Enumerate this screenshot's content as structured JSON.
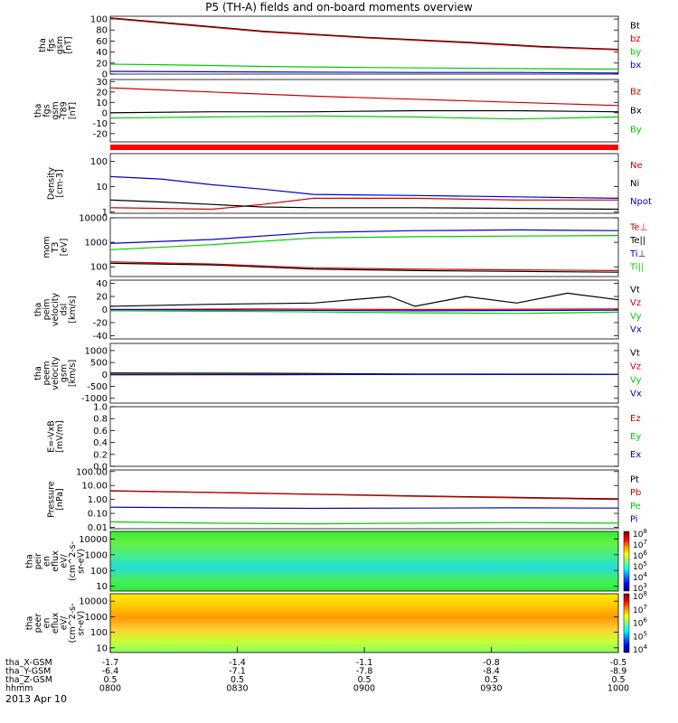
{
  "title": "P5 (TH-A) fields and on-board moments overview",
  "date_label": "2013 Apr 10",
  "chart_data": [
    {
      "type": "line",
      "id": "fgs-gsm",
      "ylabel": [
        "tha",
        "fgs",
        "gsm",
        "[nT]"
      ],
      "ylim": [
        0,
        105
      ],
      "yscale": "linear",
      "yticks": [
        0,
        20,
        40,
        60,
        80,
        100
      ],
      "yticklabels": [
        "0",
        "20",
        "40",
        "60",
        "80",
        "100"
      ],
      "legend": [
        "Bt",
        "bz",
        "by",
        "bx"
      ],
      "series": [
        {
          "name": "Bt",
          "color": "#000000",
          "x": [
            0,
            0.15,
            0.3,
            0.5,
            0.7,
            0.85,
            1.0
          ],
          "y": [
            102,
            90,
            78,
            67,
            58,
            50,
            45
          ]
        },
        {
          "name": "bz",
          "color": "#cc0000",
          "x": [
            0,
            0.15,
            0.3,
            0.5,
            0.7,
            0.85,
            1.0
          ],
          "y": [
            101,
            89,
            77,
            66,
            57,
            49,
            44
          ]
        },
        {
          "name": "by",
          "color": "#00cc00",
          "x": [
            0,
            0.1,
            0.3,
            0.5,
            0.8,
            1.0
          ],
          "y": [
            18,
            17,
            14,
            12,
            10,
            9
          ]
        },
        {
          "name": "bx",
          "color": "#0000cc",
          "x": [
            0,
            0.3,
            0.6,
            0.8,
            1.0
          ],
          "y": [
            5,
            4,
            3,
            3,
            2
          ]
        }
      ]
    },
    {
      "type": "line",
      "id": "fgs-gsm-t89",
      "ylabel": [
        "tha",
        "fgs",
        "gsm",
        "-T89",
        "[nT]"
      ],
      "ylim": [
        -28,
        32
      ],
      "yscale": "linear",
      "yticks": [
        -20,
        -10,
        0,
        10,
        20,
        30
      ],
      "yticklabels": [
        "-20",
        "-10",
        "0",
        "10",
        "20",
        "30"
      ],
      "legend": [
        "Bz",
        "Bx",
        "By"
      ],
      "series": [
        {
          "name": "Bz",
          "color": "#cc0000",
          "x": [
            0,
            0.1,
            0.25,
            0.4,
            0.6,
            0.8,
            1.0
          ],
          "y": [
            24,
            22,
            19,
            16,
            13,
            10,
            7
          ]
        },
        {
          "name": "Bx",
          "color": "#000000",
          "x": [
            0,
            0.2,
            0.4,
            0.6,
            0.8,
            1.0
          ],
          "y": [
            0,
            1,
            1,
            2,
            2,
            1
          ]
        },
        {
          "name": "By",
          "color": "#00cc00",
          "x": [
            0,
            0.2,
            0.4,
            0.6,
            0.8,
            1.0
          ],
          "y": [
            -5,
            -4,
            -3,
            -4,
            -6,
            -4
          ]
        }
      ]
    },
    {
      "type": "line",
      "id": "density",
      "ylabel": [
        "Density",
        "[cm-3]"
      ],
      "ylim": [
        0.9,
        200
      ],
      "yscale": "log",
      "yticks": [
        1,
        10,
        100
      ],
      "yticklabels": [
        "1",
        "10",
        "100"
      ],
      "legend": [
        "Ne",
        "Ni",
        "Npot"
      ],
      "series": [
        {
          "name": "Npot",
          "color": "#0000cc",
          "x": [
            0,
            0.1,
            0.2,
            0.3,
            0.4,
            0.6,
            0.8,
            1.0
          ],
          "y": [
            25,
            20,
            12,
            8,
            5,
            4.5,
            4,
            3.5
          ]
        },
        {
          "name": "Ne",
          "color": "#cc0000",
          "x": [
            0,
            0.1,
            0.2,
            0.3,
            0.4,
            0.6,
            0.8,
            1.0
          ],
          "y": [
            1.5,
            1.4,
            1.3,
            2,
            3.5,
            3.5,
            3,
            3
          ]
        },
        {
          "name": "Ni",
          "color": "#000000",
          "x": [
            0,
            0.1,
            0.2,
            0.3,
            0.4,
            0.6,
            0.8,
            1.0
          ],
          "y": [
            3,
            2.5,
            2,
            1.6,
            1.5,
            1.5,
            1.4,
            1.3
          ]
        }
      ]
    },
    {
      "type": "line",
      "id": "temperature",
      "ylabel": [
        "mom",
        "T3",
        "[eV]"
      ],
      "ylim": [
        40,
        10000
      ],
      "yscale": "log",
      "yticks": [
        100,
        1000,
        10000
      ],
      "yticklabels": [
        "100",
        "1000",
        "10000"
      ],
      "legend": [
        "Te⊥",
        "Te||",
        "Ti⊥",
        "Ti||"
      ],
      "series": [
        {
          "name": "Ti⊥",
          "color": "#0000cc",
          "x": [
            0,
            0.2,
            0.4,
            0.6,
            0.8,
            1.0
          ],
          "y": [
            900,
            1300,
            2500,
            3000,
            3200,
            3000
          ]
        },
        {
          "name": "Ti||",
          "color": "#00cc00",
          "x": [
            0,
            0.2,
            0.4,
            0.6,
            0.8,
            1.0
          ],
          "y": [
            500,
            800,
            1500,
            1700,
            1800,
            1900
          ]
        },
        {
          "name": "Te||",
          "color": "#000000",
          "x": [
            0,
            0.2,
            0.4,
            0.6,
            0.8,
            1.0
          ],
          "y": [
            140,
            120,
            80,
            70,
            65,
            60
          ]
        },
        {
          "name": "Te⊥",
          "color": "#cc0000",
          "x": [
            0,
            0.2,
            0.4,
            0.6,
            0.8,
            1.0
          ],
          "y": [
            160,
            130,
            90,
            80,
            75,
            70
          ]
        }
      ]
    },
    {
      "type": "line",
      "id": "peim-velocity",
      "ylabel": [
        "tha",
        "peim",
        "velocity",
        "dsl",
        "[km/s]"
      ],
      "ylim": [
        -45,
        45
      ],
      "yscale": "linear",
      "yticks": [
        -40,
        -20,
        0,
        20,
        40
      ],
      "yticklabels": [
        "-40",
        "-20",
        "0",
        "20",
        "40"
      ],
      "legend": [
        "Vt",
        "Vz",
        "Vy",
        "Vx"
      ],
      "series": [
        {
          "name": "Vt",
          "color": "#000000",
          "x": [
            0,
            0.2,
            0.4,
            0.55,
            0.6,
            0.7,
            0.8,
            0.9,
            1.0
          ],
          "y": [
            5,
            8,
            10,
            20,
            5,
            20,
            10,
            25,
            15
          ]
        },
        {
          "name": "Vz",
          "color": "#cc0000",
          "x": [
            0,
            0.3,
            0.6,
            1.0
          ],
          "y": [
            0,
            1,
            0,
            1
          ]
        },
        {
          "name": "Vy",
          "color": "#00cc00",
          "x": [
            0,
            0.3,
            0.6,
            0.8,
            1.0
          ],
          "y": [
            -2,
            -3,
            -5,
            -6,
            -4
          ]
        },
        {
          "name": "Vx",
          "color": "#0000cc",
          "x": [
            0,
            0.3,
            0.6,
            1.0
          ],
          "y": [
            0,
            -1,
            -2,
            -1
          ]
        }
      ]
    },
    {
      "type": "line",
      "id": "peem-velocity",
      "ylabel": [
        "tha",
        "peem",
        "velocity",
        "gsm",
        "[km/s]"
      ],
      "ylim": [
        -1200,
        1300
      ],
      "yscale": "linear",
      "yticks": [
        -1000,
        -500,
        0,
        500,
        1000
      ],
      "yticklabels": [
        "-1000",
        "-500",
        "0",
        "500",
        "1000"
      ],
      "legend": [
        "Vt",
        "Vz",
        "Vy",
        "Vx"
      ],
      "series": [
        {
          "name": "Vt",
          "color": "#000000",
          "x": [
            0,
            0.3,
            0.6,
            1.0
          ],
          "y": [
            60,
            50,
            20,
            10
          ]
        },
        {
          "name": "Vz",
          "color": "#cc0000",
          "x": [
            0,
            0.3,
            0.6,
            1.0
          ],
          "y": [
            -20,
            -10,
            0,
            0
          ]
        },
        {
          "name": "Vy",
          "color": "#00cc00",
          "x": [
            0,
            0.3,
            0.6,
            1.0
          ],
          "y": [
            10,
            0,
            0,
            0
          ]
        },
        {
          "name": "Vx",
          "color": "#0000cc",
          "x": [
            0,
            0.3,
            0.6,
            1.0
          ],
          "y": [
            0,
            -5,
            0,
            0
          ]
        }
      ]
    },
    {
      "type": "line",
      "id": "efield",
      "ylabel": [
        "E=-VxB",
        "[mV/m]"
      ],
      "ylim": [
        0,
        1
      ],
      "yscale": "linear",
      "yticks": [
        0,
        0.2,
        0.4,
        0.6,
        0.8,
        1.0
      ],
      "yticklabels": [
        "0.0",
        "0.2",
        "0.4",
        "0.6",
        "0.8",
        "1.0"
      ],
      "legend": [
        "Ez",
        "Ey",
        "Ex"
      ],
      "series": []
    },
    {
      "type": "line",
      "id": "pressure",
      "ylabel": [
        "Pressure",
        "[nPa]"
      ],
      "ylim": [
        0.008,
        130
      ],
      "yscale": "log",
      "yticks": [
        0.01,
        0.1,
        1,
        10,
        100
      ],
      "yticklabels": [
        "0.01",
        "0.10",
        "1.00",
        "10.00",
        "100.00"
      ],
      "legend": [
        "Pt",
        "Pb",
        "Pe",
        "Pi"
      ],
      "series": [
        {
          "name": "Pt",
          "color": "#000000",
          "x": [
            0,
            0.2,
            0.4,
            0.6,
            0.8,
            1.0
          ],
          "y": [
            4.2,
            3.2,
            2.4,
            1.8,
            1.4,
            1.1
          ]
        },
        {
          "name": "Pb",
          "color": "#cc0000",
          "x": [
            0,
            0.2,
            0.4,
            0.6,
            0.8,
            1.0
          ],
          "y": [
            4.0,
            3.1,
            2.3,
            1.7,
            1.3,
            1.0
          ]
        },
        {
          "name": "Pi",
          "color": "#0000cc",
          "x": [
            0,
            0.2,
            0.4,
            0.6,
            0.8,
            1.0
          ],
          "y": [
            0.28,
            0.25,
            0.23,
            0.24,
            0.25,
            0.24
          ]
        },
        {
          "name": "Pe",
          "color": "#00cc00",
          "x": [
            0,
            0.2,
            0.4,
            0.6,
            0.8,
            1.0
          ],
          "y": [
            0.025,
            0.02,
            0.018,
            0.02,
            0.022,
            0.02
          ]
        }
      ]
    },
    {
      "type": "heatmap",
      "id": "peir-eflux",
      "ylabel": [
        "tha",
        "peir",
        "en",
        "eflux",
        "eV/",
        "(cm^2-s-",
        "sr-eV)"
      ],
      "ylim": [
        5,
        30000
      ],
      "yscale": "log",
      "yticks": [
        10,
        100,
        1000,
        10000
      ],
      "yticklabels": [
        "10",
        "100",
        "1000",
        "10000"
      ],
      "colorbar": {
        "labels": [
          "10^3",
          "10^4",
          "10^5",
          "10^6",
          "10^7",
          "10^8"
        ]
      }
    },
    {
      "type": "heatmap",
      "id": "peer-eflux",
      "ylabel": [
        "tha",
        "peer",
        "en",
        "eflux",
        "eV/",
        "(cm^2-s-",
        "sr-eV)"
      ],
      "ylim": [
        5,
        30000
      ],
      "yscale": "log",
      "yticks": [
        10,
        100,
        1000,
        10000
      ],
      "yticklabels": [
        "10",
        "100",
        "1000",
        "10000"
      ],
      "colorbar": {
        "labels": [
          "10^4",
          "10^5",
          "10^6",
          "10^7",
          "10^8"
        ]
      }
    }
  ],
  "time_axis": {
    "rows": [
      {
        "label": "tha_X-GSM",
        "values": [
          "-1.7",
          "-1.4",
          "-1.1",
          "-0.8",
          "-0.5"
        ]
      },
      {
        "label": "tha_Y-GSM",
        "values": [
          "-6.4",
          "-7.1",
          "-7.8",
          "-8.4",
          "-8.9"
        ]
      },
      {
        "label": "tha_Z-GSM",
        "values": [
          "0.5",
          "0.5",
          "0.5",
          "0.5",
          "0.5"
        ]
      },
      {
        "label": "hhmm",
        "values": [
          "0800",
          "0830",
          "0900",
          "0930",
          "1000"
        ]
      }
    ]
  }
}
